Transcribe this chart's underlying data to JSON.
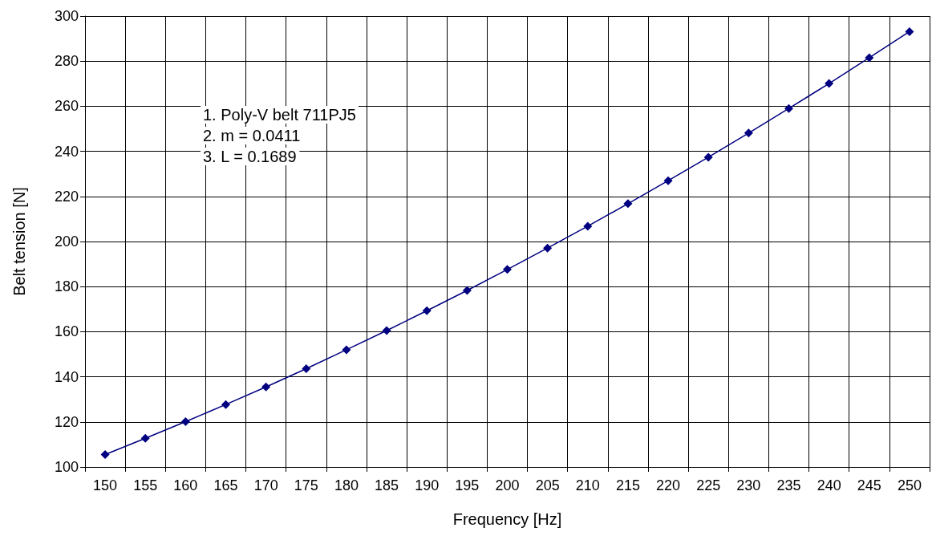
{
  "chart_data": {
    "type": "line",
    "xlabel": "Frequency [Hz]",
    "ylabel": "Belt tension [N]",
    "categories": [
      "150",
      "155",
      "160",
      "165",
      "170",
      "175",
      "180",
      "185",
      "190",
      "195",
      "200",
      "205",
      "210",
      "215",
      "220",
      "225",
      "230",
      "235",
      "240",
      "245",
      "250"
    ],
    "series": [
      {
        "color": "#000080",
        "values": [
          105.5,
          112.7,
          120.1,
          127.7,
          135.5,
          143.6,
          152,
          160.5,
          169.3,
          178.3,
          187.6,
          197.1,
          206.8,
          216.8,
          227,
          237.4,
          248.1,
          259,
          270.1,
          281.5,
          293.1
        ]
      }
    ],
    "ylim": [
      100,
      300
    ],
    "yticks": [
      100,
      120,
      140,
      160,
      180,
      200,
      220,
      240,
      260,
      280,
      300
    ],
    "grid": true,
    "marker": "diamond",
    "line_style": "solid",
    "annotations": [
      "1. Poly-V belt 711PJ5",
      "2. m = 0.0411",
      "3. L = 0.1689"
    ]
  }
}
